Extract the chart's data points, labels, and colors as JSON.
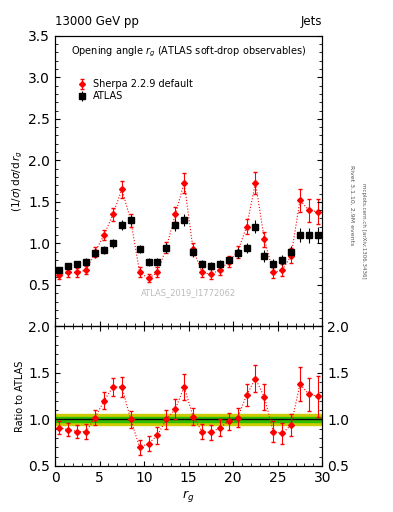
{
  "title_top": "13000 GeV pp",
  "title_right": "Jets",
  "plot_title": "Opening angle $r_g$ (ATLAS soft-drop observables)",
  "ylabel_main": "(1/σ) dσ/d r_g",
  "ylabel_ratio": "Ratio to ATLAS",
  "xlabel": "$r_g$",
  "watermark": "ATLAS_2019_I1772062",
  "rivet_text": "Rivet 3.1.10, 2.9M events",
  "arxiv_text": "mcplots.cern.ch [arXiv:1306.3436]",
  "xlim": [
    0,
    30
  ],
  "ylim_main": [
    0,
    3.5
  ],
  "ylim_ratio": [
    0.5,
    2.0
  ],
  "atlas_x": [
    0.5,
    1.5,
    2.5,
    3.5,
    4.5,
    5.5,
    6.5,
    7.5,
    8.5,
    9.5,
    10.5,
    11.5,
    12.5,
    13.5,
    14.5,
    15.5,
    16.5,
    17.5,
    18.5,
    19.5,
    20.5,
    21.5,
    22.5,
    23.5,
    24.5,
    25.5,
    26.5,
    27.5,
    28.5,
    29.5
  ],
  "atlas_y": [
    0.68,
    0.73,
    0.75,
    0.78,
    0.88,
    0.92,
    1.0,
    1.22,
    1.28,
    0.93,
    0.78,
    0.78,
    0.95,
    1.22,
    1.28,
    0.9,
    0.75,
    0.73,
    0.75,
    0.8,
    0.88,
    0.95,
    1.2,
    0.85,
    0.75,
    0.8,
    0.9,
    1.1,
    1.1,
    1.1
  ],
  "atlas_yerr": [
    0.04,
    0.04,
    0.04,
    0.04,
    0.05,
    0.05,
    0.05,
    0.06,
    0.06,
    0.05,
    0.05,
    0.05,
    0.06,
    0.07,
    0.07,
    0.06,
    0.05,
    0.05,
    0.05,
    0.05,
    0.06,
    0.06,
    0.08,
    0.07,
    0.06,
    0.06,
    0.07,
    0.08,
    0.09,
    0.1
  ],
  "sherpa_x": [
    0.5,
    1.5,
    2.5,
    3.5,
    4.5,
    5.5,
    6.5,
    7.5,
    8.5,
    9.5,
    10.5,
    11.5,
    12.5,
    13.5,
    14.5,
    15.5,
    16.5,
    17.5,
    18.5,
    19.5,
    20.5,
    21.5,
    22.5,
    23.5,
    24.5,
    25.5,
    26.5,
    27.5,
    28.5,
    29.5
  ],
  "sherpa_y": [
    0.62,
    0.65,
    0.65,
    0.68,
    0.9,
    1.1,
    1.35,
    1.65,
    1.28,
    0.65,
    0.58,
    0.65,
    0.95,
    1.35,
    1.73,
    0.93,
    0.65,
    0.63,
    0.68,
    0.78,
    0.9,
    1.2,
    1.73,
    1.05,
    0.65,
    0.68,
    0.85,
    1.52,
    1.4,
    1.38
  ],
  "sherpa_yerr": [
    0.05,
    0.05,
    0.05,
    0.05,
    0.06,
    0.06,
    0.08,
    0.1,
    0.08,
    0.06,
    0.05,
    0.06,
    0.07,
    0.09,
    0.12,
    0.07,
    0.06,
    0.06,
    0.06,
    0.07,
    0.07,
    0.09,
    0.13,
    0.09,
    0.07,
    0.07,
    0.09,
    0.14,
    0.14,
    0.15
  ],
  "ratio_sherpa_y": [
    0.91,
    0.89,
    0.87,
    0.87,
    1.02,
    1.2,
    1.35,
    1.35,
    1.0,
    0.7,
    0.74,
    0.83,
    1.0,
    1.11,
    1.35,
    1.03,
    0.87,
    0.86,
    0.91,
    0.98,
    1.02,
    1.26,
    1.44,
    1.24,
    0.87,
    0.85,
    0.94,
    1.38,
    1.27,
    1.25
  ],
  "ratio_sherpa_yerr": [
    0.07,
    0.07,
    0.07,
    0.08,
    0.08,
    0.09,
    0.1,
    0.11,
    0.09,
    0.08,
    0.08,
    0.09,
    0.1,
    0.11,
    0.14,
    0.09,
    0.08,
    0.08,
    0.09,
    0.09,
    0.1,
    0.12,
    0.15,
    0.14,
    0.11,
    0.11,
    0.12,
    0.18,
    0.18,
    0.22
  ],
  "green_band_y": 1.0,
  "green_band_err": 0.03,
  "yellow_band_err": 0.06,
  "atlas_color": "black",
  "sherpa_color": "red",
  "atlas_marker": "s",
  "sherpa_marker": "D",
  "sherpa_markersize": 3.0,
  "atlas_markersize": 4.5,
  "line_color_horizontal": "black",
  "green_band_color": "#00bb00",
  "yellow_band_color": "#cccc00",
  "xticks": [
    0,
    5,
    10,
    15,
    20,
    25,
    30
  ],
  "yticks_main": [
    0.5,
    1.0,
    1.5,
    2.0,
    2.5,
    3.0,
    3.5
  ],
  "yticks_ratio": [
    0.5,
    1.0,
    1.5,
    2.0
  ],
  "background_color": "white"
}
